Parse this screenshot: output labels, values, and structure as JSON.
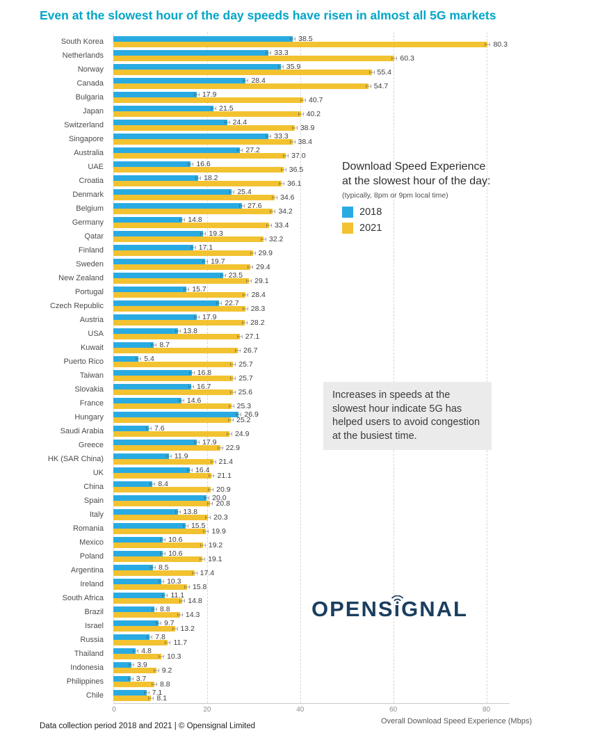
{
  "title": "Even at the slowest hour of the day speeds have risen in almost all 5G markets",
  "colors": {
    "title_accent": "#00a6c7",
    "bar_2018": "#29abe2",
    "bar_2021": "#f2c230",
    "logo_navy": "#1a3e5f"
  },
  "legend": {
    "title_line1": "Download Speed Experience",
    "title_line2": "at the slowest hour of the day:",
    "subtitle": "(typically, 8pm or 9pm local time)",
    "items": [
      {
        "label": "2018",
        "color": "#29abe2"
      },
      {
        "label": "2021",
        "color": "#f2c230"
      }
    ]
  },
  "annotation": {
    "text": "Increases in speeds at the slowest hour indicate 5G has helped users to avoid congestion at the busiest time."
  },
  "logo": {
    "text": "OPENSiGNAL",
    "part1": "OPENS",
    "i_char": "ı",
    "part2": "GNAL"
  },
  "footer": {
    "left": "Data collection period 2018 and 2021  | © Opensignal Limited"
  },
  "xaxis": {
    "label": "Overall Download Speed Experience (Mbps)"
  },
  "chart_data": {
    "type": "bar",
    "orientation": "horizontal",
    "title": "Even at the slowest hour of the day speeds have risen in almost all 5G markets",
    "xlabel": "Overall Download Speed Experience (Mbps)",
    "xlim": [
      0,
      85
    ],
    "xticks": [
      0,
      20,
      40,
      60,
      80
    ],
    "grid": "dashed-vertical",
    "legend_position": "inside-upper-right",
    "error_bars": true,
    "categories": [
      "South Korea",
      "Netherlands",
      "Norway",
      "Canada",
      "Bulgaria",
      "Japan",
      "Switzerland",
      "Singapore",
      "Australia",
      "UAE",
      "Croatia",
      "Denmark",
      "Belgium",
      "Germany",
      "Qatar",
      "Finland",
      "Sweden",
      "New Zealand",
      "Portugal",
      "Czech Republic",
      "Austria",
      "USA",
      "Kuwait",
      "Puerto Rico",
      "Taiwan",
      "Slovakia",
      "France",
      "Hungary",
      "Saudi Arabia",
      "Greece",
      "HK (SAR China)",
      "UK",
      "China",
      "Spain",
      "Italy",
      "Romania",
      "Mexico",
      "Poland",
      "Argentina",
      "Ireland",
      "South Africa",
      "Brazil",
      "Israel",
      "Russia",
      "Thailand",
      "Indonesia",
      "Philippines",
      "Chile"
    ],
    "series": [
      {
        "name": "2018",
        "color": "#29abe2",
        "values": [
          "38.5",
          "33.3",
          "35.9",
          "28.4",
          "17.9",
          "21.5",
          "24.4",
          "33.3",
          "27.2",
          "16.6",
          "18.2",
          "25.4",
          "27.6",
          "14.8",
          "19.3",
          "17.1",
          "19.7",
          "23.5",
          "15.7",
          "22.7",
          "17.9",
          "13.8",
          "8.7",
          "5.4",
          "16.8",
          "16.7",
          "14.6",
          "26.9",
          "7.6",
          "17.9",
          "11.9",
          "16.4",
          "8.4",
          "20.0",
          "13.8",
          "15.5",
          "10.6",
          "10.6",
          "8.5",
          "10.3",
          "11.1",
          "8.8",
          "9.7",
          "7.8",
          "4.8",
          "3.9",
          "3.7",
          "7.1"
        ]
      },
      {
        "name": "2021",
        "color": "#f2c230",
        "values": [
          "80.3",
          "60.3",
          "55.4",
          "54.7",
          "40.7",
          "40.2",
          "38.9",
          "38.4",
          "37.0",
          "36.5",
          "36.1",
          "34.6",
          "34.2",
          "33.4",
          "32.2",
          "29.9",
          "29.4",
          "29.1",
          "28.4",
          "28.3",
          "28.2",
          "27.1",
          "26.7",
          "25.7",
          "25.7",
          "25.6",
          "25.3",
          "25.2",
          "24.9",
          "22.9",
          "21.4",
          "21.1",
          "20.9",
          "20.8",
          "20.3",
          "19.9",
          "19.2",
          "19.1",
          "17.4",
          "15.8",
          "14.8",
          "14.3",
          "13.2",
          "11.7",
          "10.3",
          "9.2",
          "8.8",
          "8.1"
        ]
      }
    ]
  }
}
